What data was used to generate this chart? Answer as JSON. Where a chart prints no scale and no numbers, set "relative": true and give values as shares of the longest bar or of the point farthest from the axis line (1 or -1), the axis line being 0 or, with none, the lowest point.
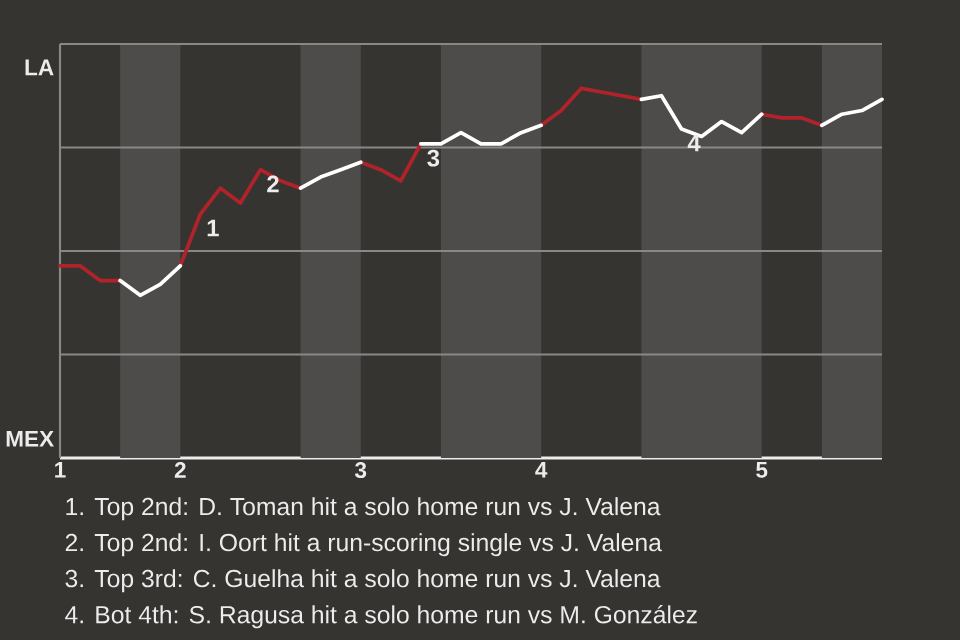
{
  "chart_data": {
    "type": "line",
    "relative": true,
    "categories": [
      "1",
      null,
      null,
      null,
      null,
      null,
      "2",
      null,
      null,
      null,
      null,
      null,
      null,
      null,
      null,
      "3",
      null,
      null,
      null,
      null,
      null,
      null,
      null,
      null,
      "4",
      null,
      null,
      null,
      null,
      null,
      null,
      null,
      null,
      null,
      null,
      "5",
      null,
      null,
      null,
      null,
      null,
      null
    ],
    "series": [
      {
        "color": "#b0232a",
        "values": [
          0.52,
          0.52,
          0.48,
          0.48,
          null,
          null,
          0.52,
          0.66,
          0.73,
          0.69,
          0.78,
          0.75,
          0.73,
          null,
          null,
          0.8,
          0.78,
          0.75,
          0.85,
          null,
          null,
          null,
          null,
          null,
          0.9,
          0.94,
          1,
          0.99,
          0.98,
          0.97,
          null,
          null,
          null,
          null,
          null,
          0.93,
          0.92,
          0.92,
          0.9,
          null,
          null,
          null
        ]
      },
      {
        "color": "#ffffff",
        "values": [
          null,
          null,
          null,
          0.48,
          0.44,
          0.47,
          0.52,
          null,
          null,
          null,
          null,
          null,
          0.73,
          0.76,
          0.78,
          0.8,
          null,
          null,
          0.85,
          0.85,
          0.88,
          0.85,
          0.85,
          0.88,
          0.9,
          null,
          null,
          null,
          null,
          0.97,
          0.98,
          0.89,
          0.87,
          0.91,
          0.88,
          0.93,
          null,
          null,
          0.9,
          0.93,
          0.94,
          0.97
        ]
      }
    ],
    "grid": "y",
    "annotations": [
      "LA",
      "MEX",
      {
        "text": "1",
        "y": 0.66
      },
      {
        "text": "2",
        "y": 0.78
      },
      {
        "text": "3",
        "y": 0.85
      },
      {
        "text": "4",
        "y": 0.89
      },
      "1. Top 2nd: D. Toman hit a solo home run vs J. Valena",
      "2. Top 2nd: I. Oort hit a run-scoring single vs J. Valena",
      "3. Top 3rd: C. Guelha hit a solo home run vs J. Valena",
      "4. Bot 4th: S. Ragusa hit a solo home run vs M. González"
    ]
  }
}
